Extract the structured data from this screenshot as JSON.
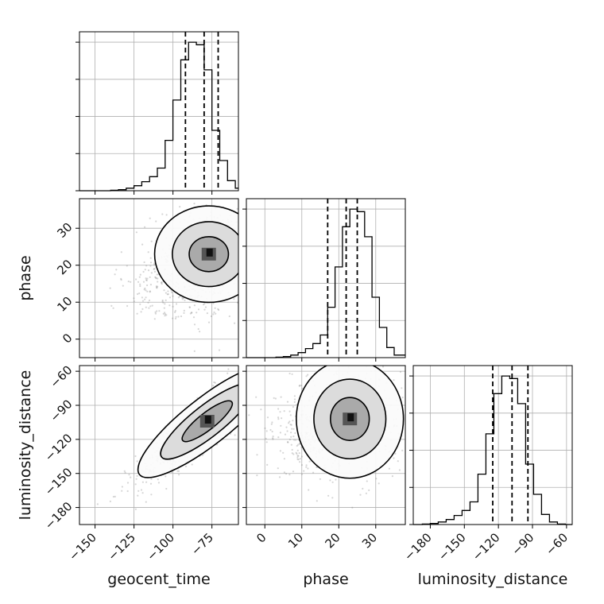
{
  "chart_data": {
    "type": "corner",
    "parameters": [
      "geocent_time",
      "phase",
      "luminosity_distance"
    ],
    "axis_labels": {
      "x": [
        "geocent_time",
        "phase",
        "luminosity_distance"
      ],
      "y": [
        "phase",
        "luminosity_distance"
      ]
    },
    "ranges": {
      "geocent_time": [
        -160,
        -58
      ],
      "phase": [
        -5,
        38
      ],
      "luminosity_distance": [
        -195,
        -55
      ]
    },
    "ticks": {
      "geocent_time": [
        -150,
        -125,
        -100,
        -75
      ],
      "phase": [
        0,
        10,
        20,
        30
      ],
      "luminosity_distance": [
        -180,
        -150,
        -120,
        -90,
        -60
      ]
    },
    "tick_labels": {
      "geocent_time": [
        "−150",
        "−125",
        "−100",
        "−75"
      ],
      "phase": [
        "0",
        "10",
        "20",
        "30"
      ],
      "luminosity_distance": [
        "−180",
        "−150",
        "−120",
        "−90",
        "−60"
      ]
    },
    "grid": true,
    "histograms": [
      {
        "parameter": "geocent_time",
        "bin_edges": [
          -160,
          -155,
          -150,
          -145,
          -140,
          -135,
          -130,
          -125,
          -120,
          -115,
          -110,
          -105,
          -100,
          -95,
          -90,
          -85,
          -80,
          -75,
          -70,
          -65,
          -60,
          -58
        ],
        "counts": [
          0,
          0,
          0,
          0,
          1,
          2,
          5,
          10,
          18,
          28,
          45,
          100,
          180,
          260,
          295,
          290,
          240,
          120,
          60,
          20,
          5
        ],
        "quantile_lines": [
          -92,
          -80,
          -71
        ]
      },
      {
        "parameter": "phase",
        "bin_edges": [
          -5,
          -3,
          -1,
          1,
          3,
          5,
          7,
          9,
          11,
          13,
          15,
          17,
          19,
          21,
          23,
          25,
          27,
          29,
          31,
          33,
          35,
          38
        ],
        "counts": [
          0,
          0,
          0,
          0,
          1,
          2,
          5,
          10,
          18,
          28,
          45,
          100,
          180,
          260,
          295,
          290,
          240,
          120,
          60,
          20,
          5
        ],
        "quantile_lines": [
          17,
          22,
          25
        ]
      },
      {
        "parameter": "luminosity_distance",
        "bin_edges": [
          -195,
          -187,
          -180,
          -173,
          -166,
          -159,
          -152,
          -145,
          -138,
          -131,
          -124,
          -117,
          -110,
          -103,
          -96,
          -89,
          -82,
          -75,
          -68,
          -61,
          -55
        ],
        "counts": [
          0,
          1,
          2,
          5,
          10,
          18,
          28,
          45,
          100,
          180,
          260,
          295,
          290,
          240,
          120,
          60,
          20,
          5,
          1,
          0
        ],
        "quantile_lines": [
          -125,
          -108,
          -94
        ]
      }
    ],
    "joint_distributions": [
      {
        "x": "geocent_time",
        "y": "phase",
        "peak": [
          -77,
          23
        ],
        "spread": [
          12,
          4.5
        ],
        "correlation": 0.1,
        "background_peak": [
          -98,
          14
        ],
        "contour_levels": [
          "39%",
          "86%",
          "99%"
        ]
      },
      {
        "x": "geocent_time",
        "y": "luminosity_distance",
        "peak": [
          -78,
          -104
        ],
        "spread": [
          15,
          18
        ],
        "correlation": 0.9,
        "contour_levels": [
          "39%",
          "86%",
          "99%"
        ]
      },
      {
        "x": "phase",
        "y": "luminosity_distance",
        "peak": [
          23,
          -102
        ],
        "spread": [
          5,
          18
        ],
        "correlation": 0.05,
        "background_peak": [
          12,
          -115
        ],
        "contour_levels": [
          "39%",
          "86%",
          "99%"
        ]
      }
    ]
  }
}
